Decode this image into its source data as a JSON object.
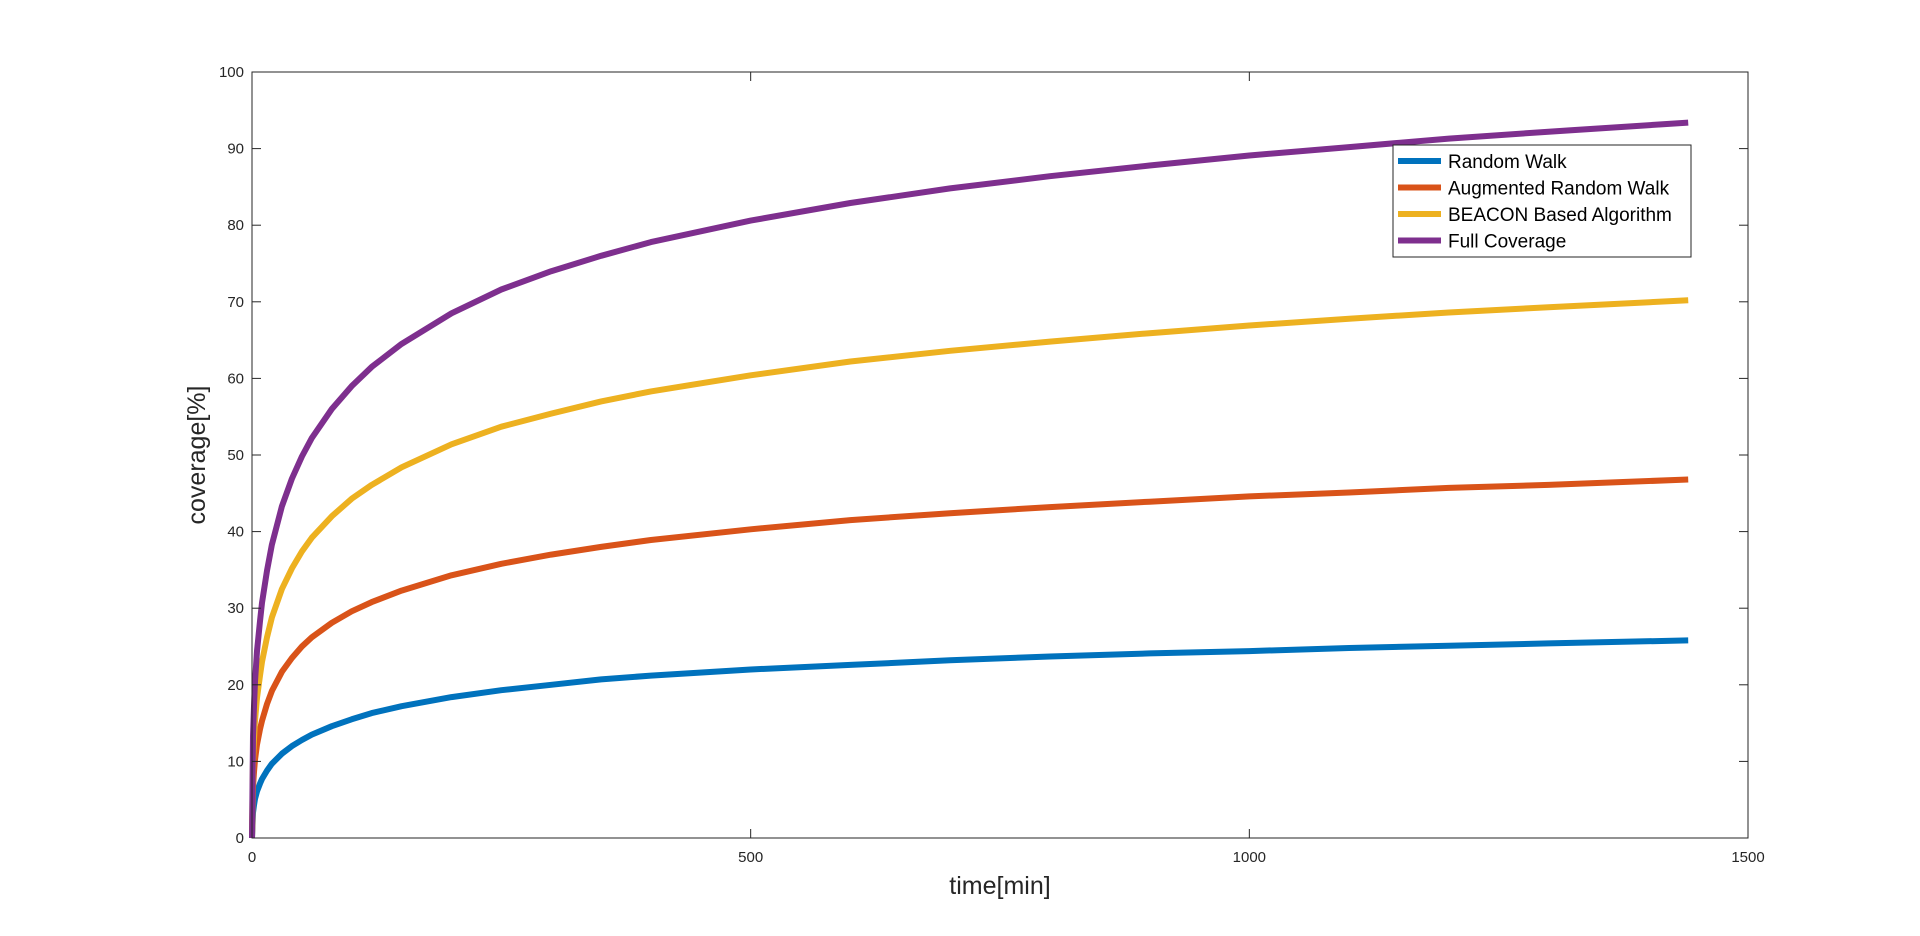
{
  "chart_data": {
    "type": "line",
    "title": "",
    "xlabel": "time[min]",
    "ylabel": "coverage[%]",
    "xlim": [
      0,
      1500
    ],
    "ylim": [
      0,
      100
    ],
    "xticks": [
      0,
      500,
      1000,
      1500
    ],
    "yticks": [
      0,
      10,
      20,
      30,
      40,
      50,
      60,
      70,
      80,
      90,
      100
    ],
    "xtick_labels": [
      "0",
      "500",
      "1000",
      "1500"
    ],
    "ytick_labels": [
      "0",
      "10",
      "20",
      "30",
      "40",
      "50",
      "60",
      "70",
      "80",
      "90",
      "100"
    ],
    "grid": false,
    "legend_position": "top-right",
    "x": [
      0,
      1,
      2,
      3,
      5,
      8,
      10,
      15,
      20,
      30,
      40,
      50,
      60,
      80,
      100,
      120,
      150,
      200,
      250,
      300,
      350,
      400,
      500,
      600,
      700,
      800,
      900,
      1000,
      1100,
      1200,
      1300,
      1440
    ],
    "series": [
      {
        "name": "Random Walk",
        "color": "#0072bd",
        "values": [
          0,
          3.3,
          4.3,
          5.1,
          6.1,
          7.1,
          7.7,
          8.8,
          9.7,
          11.0,
          12.0,
          12.8,
          13.5,
          14.6,
          15.5,
          16.3,
          17.2,
          18.4,
          19.3,
          20.0,
          20.7,
          21.2,
          22.0,
          22.6,
          23.2,
          23.7,
          24.1,
          24.4,
          24.8,
          25.1,
          25.4,
          25.8
        ]
      },
      {
        "name": "Augmented Random Walk",
        "color": "#d95319",
        "values": [
          0,
          6.7,
          8.6,
          10.2,
          12.2,
          14.2,
          15.3,
          17.5,
          19.2,
          21.7,
          23.5,
          25.0,
          26.2,
          28.1,
          29.6,
          30.8,
          32.3,
          34.3,
          35.8,
          37.0,
          38.0,
          38.9,
          40.3,
          41.5,
          42.4,
          43.2,
          43.9,
          44.6,
          45.1,
          45.7,
          46.1,
          46.8
        ]
      },
      {
        "name": "BEACON Based Algorithm",
        "color": "#edb120",
        "values": [
          0,
          10.0,
          12.9,
          15.3,
          18.3,
          21.2,
          23.0,
          26.2,
          28.8,
          32.5,
          35.2,
          37.4,
          39.2,
          42.0,
          44.3,
          46.1,
          48.4,
          51.4,
          53.7,
          55.4,
          57.0,
          58.3,
          60.4,
          62.2,
          63.6,
          64.8,
          65.9,
          66.9,
          67.8,
          68.6,
          69.3,
          70.2
        ]
      },
      {
        "name": "Full Coverage",
        "color": "#7e2f8e",
        "values": [
          0,
          13.3,
          17.2,
          20.4,
          24.4,
          28.3,
          30.7,
          34.9,
          38.3,
          43.3,
          46.9,
          49.8,
          52.2,
          56.0,
          59.0,
          61.5,
          64.5,
          68.5,
          71.6,
          74.0,
          76.0,
          77.8,
          80.6,
          82.9,
          84.8,
          86.4,
          87.8,
          89.1,
          90.2,
          91.3,
          92.2,
          93.4
        ]
      }
    ]
  }
}
